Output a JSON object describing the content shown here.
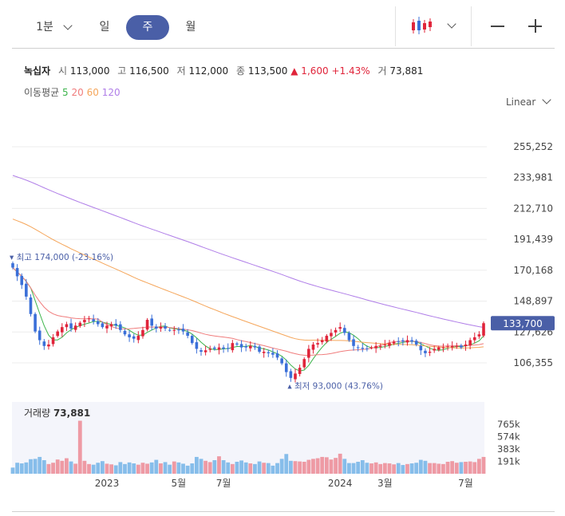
{
  "toolbar": {
    "periods": [
      "1분",
      "일",
      "주",
      "월"
    ],
    "active_period": "주"
  },
  "quote": {
    "name": "녹십자",
    "open_label": "시",
    "open": "113,000",
    "high_label": "고",
    "high": "116,500",
    "low_label": "저",
    "low": "112,000",
    "close_label": "종",
    "close": "113,500",
    "change": "▲ 1,600",
    "change_pct": "+1.43%",
    "volume_label": "거",
    "volume": "73,881"
  },
  "ma_legend": {
    "label": "이동평균",
    "periods": [
      "5",
      "20",
      "60",
      "120"
    ],
    "colors": [
      "#3cb44b",
      "#f07c7c",
      "#f5a65b",
      "#b07ee8"
    ]
  },
  "scale_mode": "Linear",
  "chart_data": {
    "type": "candlestick",
    "price_axis": {
      "ticks": [
        255252,
        233981,
        212710,
        191439,
        170168,
        148897,
        127626,
        106355
      ],
      "tick_labels": [
        "255,252",
        "233,981",
        "212,710",
        "191,439",
        "170,168",
        "148,897",
        "127,626",
        "106,355"
      ],
      "range": [
        93000,
        280000
      ]
    },
    "current_price": {
      "value": 133700,
      "label": "133,700"
    },
    "high_marker": {
      "label": "최고 174,000 (-23.16%)",
      "value": 174000
    },
    "low_marker": {
      "label": "최저 93,000 (43.76%)",
      "value": 93000
    },
    "x_labels": [
      "2023",
      "5월",
      "7월",
      "2024",
      "3월",
      "7월"
    ],
    "x_label_index": [
      21,
      37,
      47,
      73,
      83,
      101
    ],
    "close": [
      172000,
      166000,
      160000,
      152000,
      140000,
      128000,
      122000,
      118000,
      119000,
      124000,
      128000,
      131000,
      133000,
      130000,
      132000,
      134000,
      136000,
      137000,
      135000,
      133000,
      131000,
      132000,
      133000,
      132000,
      129000,
      126000,
      124000,
      123000,
      125000,
      129000,
      136000,
      132000,
      130000,
      131000,
      130000,
      129000,
      129000,
      129000,
      128000,
      125000,
      120000,
      116000,
      114000,
      115000,
      116000,
      116000,
      117000,
      116000,
      116000,
      120000,
      119000,
      117000,
      117000,
      118000,
      117000,
      114000,
      114000,
      113000,
      112000,
      110000,
      106000,
      100000,
      96000,
      99000,
      103000,
      109000,
      116000,
      119000,
      120000,
      122000,
      125000,
      127000,
      129000,
      131000,
      127000,
      122000,
      118000,
      117000,
      116000,
      116000,
      117000,
      118000,
      118000,
      119000,
      120000,
      121000,
      121000,
      121000,
      122000,
      121000,
      119000,
      115000,
      113000,
      114000,
      116000,
      117000,
      117000,
      118000,
      118000,
      118000,
      117000,
      119000,
      122000,
      124000,
      126000,
      133700
    ],
    "volume": {
      "label": "거래량",
      "value_label": "73,881",
      "axis_labels": [
        "765k",
        "574k",
        "383k",
        "191k"
      ],
      "axis_values": [
        765000,
        574000,
        383000,
        191000
      ],
      "values": [
        95000,
        170000,
        160000,
        175000,
        225000,
        230000,
        260000,
        210000,
        150000,
        170000,
        220000,
        200000,
        240000,
        190000,
        155000,
        820000,
        200000,
        150000,
        140000,
        170000,
        195000,
        155000,
        145000,
        130000,
        180000,
        150000,
        175000,
        160000,
        140000,
        170000,
        155000,
        175000,
        215000,
        160000,
        180000,
        140000,
        190000,
        175000,
        155000,
        125000,
        160000,
        260000,
        230000,
        200000,
        180000,
        210000,
        270000,
        210000,
        175000,
        150000,
        185000,
        205000,
        175000,
        160000,
        150000,
        190000,
        170000,
        165000,
        125000,
        165000,
        230000,
        305000,
        200000,
        195000,
        190000,
        185000,
        215000,
        230000,
        240000,
        260000,
        255000,
        220000,
        245000,
        310000,
        230000,
        165000,
        165000,
        185000,
        210000,
        170000,
        160000,
        175000,
        150000,
        165000,
        160000,
        145000,
        165000,
        135000,
        150000,
        160000,
        170000,
        215000,
        200000,
        165000,
        165000,
        155000,
        150000,
        185000,
        195000,
        170000,
        180000,
        185000,
        190000,
        180000,
        230000,
        260000
      ]
    }
  }
}
